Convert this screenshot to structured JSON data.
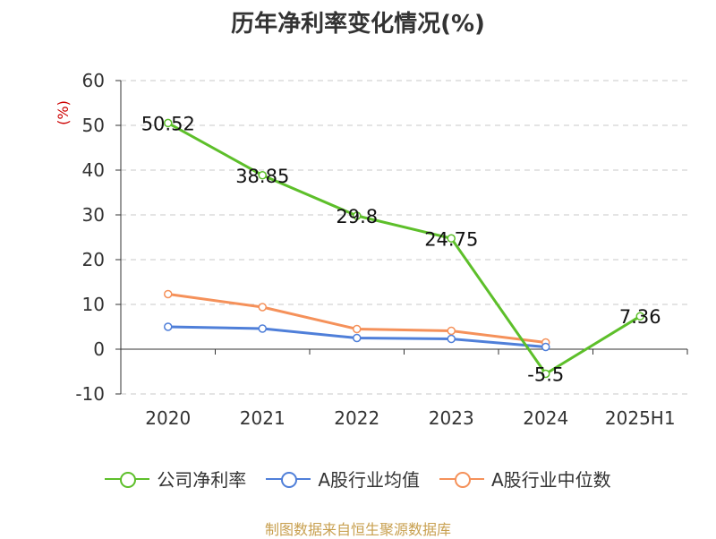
{
  "title": "历年净利率变化情况(%)",
  "source": "制图数据来自恒生聚源数据库",
  "chart_data": {
    "type": "line",
    "title": "历年净利率变化情况(%)",
    "ylabel": "(%)",
    "xlabel": "",
    "categories": [
      "2020",
      "2021",
      "2022",
      "2023",
      "2024",
      "2025H1"
    ],
    "ylim": [
      -10,
      60
    ],
    "yticks": [
      -10,
      0,
      10,
      20,
      30,
      40,
      50,
      60
    ],
    "grid": true,
    "legend_position": "bottom",
    "series": [
      {
        "name": "公司净利率",
        "color": "#5dbf2a",
        "values": [
          50.52,
          38.85,
          29.8,
          24.75,
          -5.5,
          7.36
        ],
        "labels": [
          "50.52",
          "38.85",
          "29.8",
          "24.75",
          "-5.5",
          "7.36"
        ]
      },
      {
        "name": "A股行业均值",
        "color": "#4f7fd9",
        "values": [
          5.0,
          4.6,
          2.5,
          2.3,
          0.5,
          null
        ]
      },
      {
        "name": "A股行业中位数",
        "color": "#f5915a",
        "values": [
          12.3,
          9.4,
          4.5,
          4.1,
          1.5,
          null
        ]
      }
    ]
  }
}
